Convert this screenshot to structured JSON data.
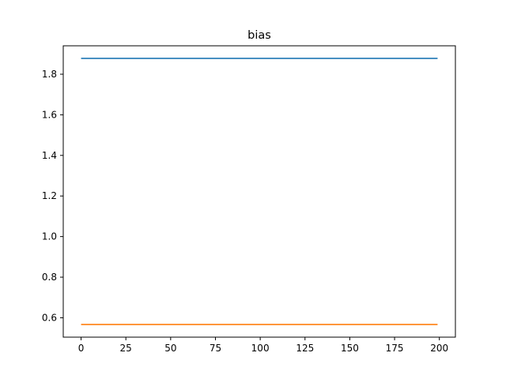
{
  "chart_data": {
    "type": "line",
    "title": "bias",
    "xlabel": "",
    "ylabel": "",
    "xlim": [
      -9.95,
      208.95
    ],
    "ylim": [
      0.5045,
      1.94
    ],
    "xticks": [
      0,
      25,
      50,
      75,
      100,
      125,
      150,
      175,
      200
    ],
    "yticks": [
      0.6,
      0.8,
      1.0,
      1.2,
      1.4,
      1.6,
      1.8
    ],
    "ytick_labels": [
      "0.6",
      "0.8",
      "1.0",
      "1.2",
      "1.4",
      "1.6",
      "1.8"
    ],
    "grid": false,
    "series": [
      {
        "color": "#1f77b4",
        "x": [
          0,
          199
        ],
        "y": [
          1.878,
          1.878
        ]
      },
      {
        "color": "#ff7f0e",
        "x": [
          0,
          199
        ],
        "y": [
          0.567,
          0.567
        ]
      }
    ]
  }
}
